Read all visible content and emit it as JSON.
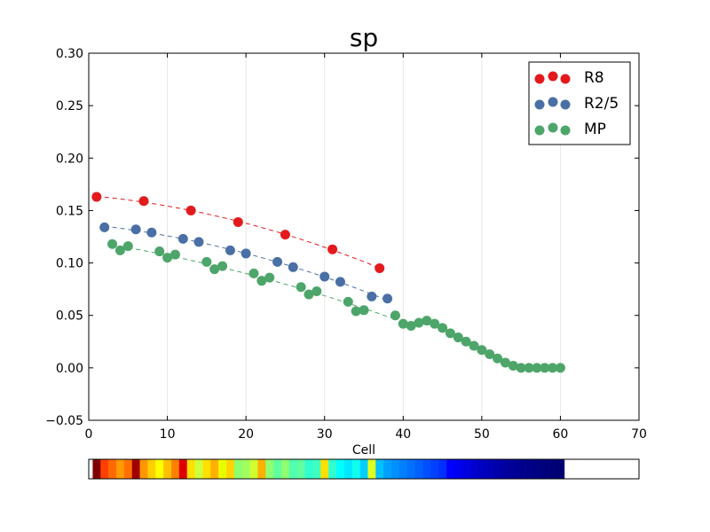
{
  "chart_data": {
    "type": "scatter",
    "title": "sp",
    "xlabel": "Cell",
    "ylabel": "",
    "xlim": [
      0,
      70
    ],
    "ylim": [
      -0.05,
      0.3
    ],
    "x_ticks": [
      0,
      10,
      20,
      30,
      40,
      50,
      60,
      70
    ],
    "y_ticks": [
      -0.05,
      0.0,
      0.05,
      0.1,
      0.15,
      0.2,
      0.25,
      0.3
    ],
    "x_tick_labels": [
      "0",
      "10",
      "20",
      "30",
      "40",
      "50",
      "60",
      "70"
    ],
    "y_tick_labels": [
      "−0.05",
      "0.00",
      "0.05",
      "0.10",
      "0.15",
      "0.20",
      "0.25",
      "0.30"
    ],
    "grid": "vertical",
    "legend_position": "top-right",
    "series": [
      {
        "name": "R8",
        "color": "#e31a1c",
        "points": [
          [
            1,
            0.163
          ],
          [
            7,
            0.159
          ],
          [
            13,
            0.15
          ],
          [
            19,
            0.139
          ],
          [
            25,
            0.127
          ],
          [
            31,
            0.113
          ],
          [
            37,
            0.095
          ]
        ],
        "fit_line": "dashed"
      },
      {
        "name": "R2/5",
        "color": "#4a6fa5",
        "points": [
          [
            2,
            0.134
          ],
          [
            6,
            0.132
          ],
          [
            8,
            0.129
          ],
          [
            12,
            0.123
          ],
          [
            14,
            0.12
          ],
          [
            18,
            0.112
          ],
          [
            20,
            0.109
          ],
          [
            24,
            0.101
          ],
          [
            26,
            0.096
          ],
          [
            30,
            0.087
          ],
          [
            32,
            0.082
          ],
          [
            36,
            0.068
          ],
          [
            38,
            0.066
          ]
        ],
        "fit_line": "dashed"
      },
      {
        "name": "MP",
        "color": "#4da56a",
        "points": [
          [
            3,
            0.118
          ],
          [
            4,
            0.112
          ],
          [
            5,
            0.116
          ],
          [
            9,
            0.111
          ],
          [
            10,
            0.105
          ],
          [
            11,
            0.108
          ],
          [
            15,
            0.101
          ],
          [
            16,
            0.094
          ],
          [
            17,
            0.097
          ],
          [
            21,
            0.09
          ],
          [
            22,
            0.083
          ],
          [
            23,
            0.086
          ],
          [
            27,
            0.077
          ],
          [
            28,
            0.07
          ],
          [
            29,
            0.073
          ],
          [
            33,
            0.063
          ],
          [
            34,
            0.054
          ],
          [
            35,
            0.055
          ],
          [
            39,
            0.05
          ],
          [
            40,
            0.042
          ],
          [
            41,
            0.04
          ],
          [
            42,
            0.043
          ],
          [
            43,
            0.045
          ],
          [
            44,
            0.042
          ],
          [
            45,
            0.038
          ],
          [
            46,
            0.033
          ],
          [
            47,
            0.029
          ],
          [
            48,
            0.025
          ],
          [
            49,
            0.021
          ],
          [
            50,
            0.017
          ],
          [
            51,
            0.013
          ],
          [
            52,
            0.009
          ],
          [
            53,
            0.005
          ],
          [
            54,
            0.002
          ],
          [
            55,
            0.0
          ],
          [
            56,
            0.0
          ],
          [
            57,
            0.0
          ],
          [
            58,
            0.0
          ],
          [
            59,
            0.0
          ],
          [
            60,
            0.0
          ]
        ],
        "fit_line": "dashed",
        "fit_range": [
          3,
          39
        ]
      }
    ],
    "color_strip": {
      "cells": 60,
      "colors": [
        "#800000",
        "#ff4000",
        "#ff6a00",
        "#ff9a00",
        "#ff7000",
        "#a00000",
        "#ff9500",
        "#ffd000",
        "#ffff00",
        "#ffc000",
        "#ff8000",
        "#e00000",
        "#ffe000",
        "#cfff3f",
        "#ffe000",
        "#ffb000",
        "#e8ff00",
        "#ffd400",
        "#8fff6f",
        "#a0ff5f",
        "#cfff30",
        "#ffb000",
        "#90ff70",
        "#60ff9f",
        "#90ff70",
        "#50ffaf",
        "#60ffa0",
        "#30ffcf",
        "#40ffbf",
        "#ffe000",
        "#30ffcf",
        "#00ffff",
        "#00e8ff",
        "#10ffef",
        "#00d0ff",
        "#e0ff20",
        "#00c0ff",
        "#00a0ff",
        "#0090ff",
        "#0080ff",
        "#0070ff",
        "#0060ff",
        "#0050ff",
        "#0040ff",
        "#0030ff",
        "#0000ff",
        "#0000f0",
        "#0000e0",
        "#0000d0",
        "#0000c0",
        "#0000b8",
        "#0000aa",
        "#00009f",
        "#000096",
        "#00008f",
        "#000088",
        "#000082",
        "#00007c",
        "#000078",
        "#000075"
      ]
    }
  }
}
